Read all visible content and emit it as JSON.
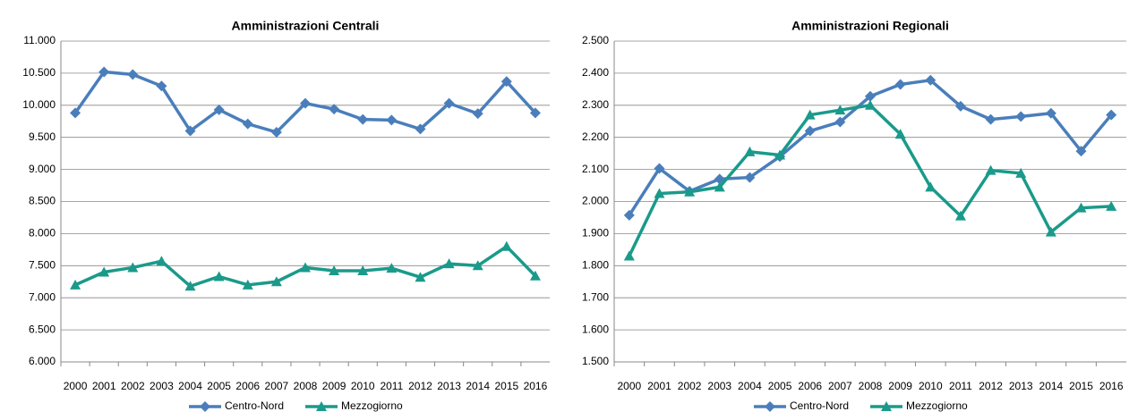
{
  "chart_data": [
    {
      "type": "line",
      "title": "Amministrazioni Centrali",
      "categories": [
        "2000",
        "2001",
        "2002",
        "2003",
        "2004",
        "2005",
        "2006",
        "2007",
        "2008",
        "2009",
        "2010",
        "2011",
        "2012",
        "2013",
        "2014",
        "2015",
        "2016"
      ],
      "series": [
        {
          "name": "Centro-Nord",
          "color": "#4a7ebb",
          "marker": "diamond",
          "values": [
            9880,
            10520,
            10480,
            10300,
            9600,
            9930,
            9710,
            9580,
            10030,
            9940,
            9780,
            9770,
            9630,
            10030,
            9870,
            10370,
            9880
          ]
        },
        {
          "name": "Mezzogiorno",
          "color": "#1a9a8a",
          "marker": "triangle",
          "values": [
            7200,
            7400,
            7470,
            7570,
            7180,
            7330,
            7200,
            7250,
            7470,
            7420,
            7420,
            7460,
            7320,
            7530,
            7500,
            7800,
            7340
          ]
        }
      ],
      "ylim": [
        6000,
        11000
      ],
      "yticks": [
        {
          "value": 6000,
          "label": "6.000"
        },
        {
          "value": 6500,
          "label": "6.500"
        },
        {
          "value": 7000,
          "label": "7.000"
        },
        {
          "value": 7500,
          "label": "7.500"
        },
        {
          "value": 8000,
          "label": "8.000"
        },
        {
          "value": 8500,
          "label": "8.500"
        },
        {
          "value": 9000,
          "label": "9.000"
        },
        {
          "value": 9500,
          "label": "9.500"
        },
        {
          "value": 10000,
          "label": "10.000"
        },
        {
          "value": 10500,
          "label": "10.500"
        },
        {
          "value": 11000,
          "label": "11.000"
        }
      ],
      "grid": true,
      "legend": "bottom"
    },
    {
      "type": "line",
      "title": "Amministrazioni Regionali",
      "categories": [
        "2000",
        "2001",
        "2002",
        "2003",
        "2004",
        "2005",
        "2006",
        "2007",
        "2008",
        "2009",
        "2010",
        "2011",
        "2012",
        "2013",
        "2014",
        "2015",
        "2016"
      ],
      "series": [
        {
          "name": "Centro-Nord",
          "color": "#4a7ebb",
          "marker": "diamond",
          "values": [
            1957,
            2103,
            2032,
            2070,
            2075,
            2140,
            2220,
            2248,
            2328,
            2365,
            2378,
            2297,
            2256,
            2265,
            2275,
            2157,
            2270
          ]
        },
        {
          "name": "Mezzogiorno",
          "color": "#1a9a8a",
          "marker": "triangle",
          "values": [
            1830,
            2025,
            2030,
            2045,
            2155,
            2145,
            2270,
            2285,
            2300,
            2210,
            2045,
            1955,
            2097,
            2088,
            1905,
            1980,
            1985
          ]
        }
      ],
      "ylim": [
        1500,
        2500
      ],
      "yticks": [
        {
          "value": 1500,
          "label": "1.500"
        },
        {
          "value": 1600,
          "label": "1.600"
        },
        {
          "value": 1700,
          "label": "1.700"
        },
        {
          "value": 1800,
          "label": "1.800"
        },
        {
          "value": 1900,
          "label": "1.900"
        },
        {
          "value": 2000,
          "label": "2.000"
        },
        {
          "value": 2100,
          "label": "2.100"
        },
        {
          "value": 2200,
          "label": "2.200"
        },
        {
          "value": 2300,
          "label": "2.300"
        },
        {
          "value": 2400,
          "label": "2.400"
        },
        {
          "value": 2500,
          "label": "2.500"
        }
      ],
      "grid": true,
      "legend": "bottom"
    }
  ]
}
